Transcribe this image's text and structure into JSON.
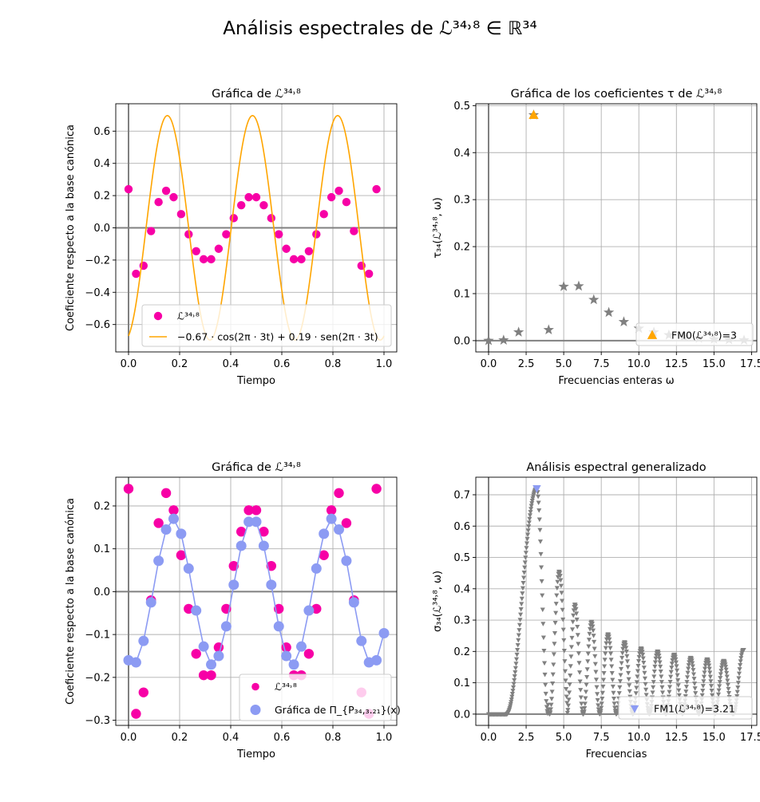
{
  "figure": {
    "suptitle": "Análisis espectrales de ℒ³⁴˒⁸ ∈ ℝ³⁴"
  },
  "colors": {
    "magenta": "#f700a6",
    "orange": "#ffa500",
    "gray": "#808080",
    "blue": "#8c9bf3",
    "grid": "#b0b0b0",
    "axis": "#808080"
  },
  "chart_data": [
    {
      "id": "p1",
      "type": "scatter",
      "title": "Gráfica de ℒ³⁴˒⁸",
      "xlabel": "Tiempo",
      "ylabel": "Coeficiente respecto a la base canónica",
      "xlim": [
        -0.05,
        1.05
      ],
      "ylim": [
        -0.77,
        0.77
      ],
      "xticks": [
        0.0,
        0.2,
        0.4,
        0.6,
        0.8,
        1.0
      ],
      "xtick_labels": [
        "0.0",
        "0.2",
        "0.4",
        "0.6",
        "0.8",
        "1.0"
      ],
      "yticks": [
        -0.6,
        -0.4,
        -0.2,
        0.0,
        0.2,
        0.4,
        0.6
      ],
      "ytick_labels": [
        "−0.6",
        "−0.4",
        "−0.2",
        "0.0",
        "0.2",
        "0.4",
        "0.6"
      ],
      "grid": true,
      "legend_position": "lower-right",
      "series": [
        {
          "name": "ℒ³⁴˒⁸",
          "kind": "points",
          "color": "#f700a6",
          "x": [
            0.0,
            0.0294,
            0.0588,
            0.0882,
            0.1176,
            0.1471,
            0.1765,
            0.2059,
            0.2353,
            0.2647,
            0.2941,
            0.3235,
            0.3529,
            0.3824,
            0.4118,
            0.4412,
            0.4706,
            0.5,
            0.5294,
            0.5588,
            0.5882,
            0.6176,
            0.6471,
            0.6765,
            0.7059,
            0.7353,
            0.7647,
            0.7941,
            0.8235,
            0.8529,
            0.8824,
            0.9118,
            0.9412,
            0.9706
          ],
          "y": [
            0.24,
            -0.285,
            -0.235,
            -0.02,
            0.16,
            0.23,
            0.19,
            0.085,
            -0.04,
            -0.145,
            -0.195,
            -0.195,
            -0.13,
            -0.04,
            0.06,
            0.14,
            0.19,
            0.19,
            0.14,
            0.06,
            -0.04,
            -0.13,
            -0.195,
            -0.195,
            -0.145,
            -0.04,
            0.085,
            0.19,
            0.23,
            0.16,
            -0.02,
            -0.235,
            -0.285,
            0.24
          ]
        },
        {
          "name": "−0.67 · cos(2π · 3t) + 0.19 · sen(2π · 3t)",
          "kind": "curve",
          "color": "#ffa500",
          "a": -0.67,
          "b": 0.19,
          "freq": 3,
          "t_range": [
            0.0,
            1.0
          ]
        }
      ]
    },
    {
      "id": "p2",
      "type": "scatter",
      "title": "Gráfica de los coeficientes τ de ℒ³⁴˒⁸",
      "xlabel": "Frecuencias enteras ω",
      "ylabel": "τ₃₄(ℒ³⁴˒⁸, ω)",
      "xlim": [
        -0.85,
        17.85
      ],
      "ylim": [
        -0.024,
        0.504
      ],
      "xticks": [
        0.0,
        2.5,
        5.0,
        7.5,
        10.0,
        12.5,
        15.0,
        17.5
      ],
      "xtick_labels": [
        "0.0",
        "2.5",
        "5.0",
        "7.5",
        "10.0",
        "12.5",
        "15.0",
        "17.5"
      ],
      "yticks": [
        0.0,
        0.1,
        0.2,
        0.3,
        0.4,
        0.5
      ],
      "ytick_labels": [
        "0.0",
        "0.1",
        "0.2",
        "0.3",
        "0.4",
        "0.5"
      ],
      "grid": true,
      "legend_position": "lower-right",
      "series": [
        {
          "name": "",
          "kind": "stars",
          "color": "#808080",
          "x": [
            0,
            1,
            2,
            3,
            4,
            5,
            6,
            7,
            8,
            9,
            10,
            11,
            12,
            13,
            14,
            15,
            16,
            17
          ],
          "y": [
            0.0,
            0.001,
            0.018,
            0.48,
            0.023,
            0.115,
            0.116,
            0.087,
            0.06,
            0.04,
            0.026,
            0.018,
            0.012,
            0.008,
            0.005,
            0.003,
            0.002,
            0.001
          ]
        },
        {
          "name": "FM0(ℒ³⁴˒⁸)=3",
          "kind": "triangle-up",
          "color": "#ffa500",
          "x": [
            3
          ],
          "y": [
            0.48
          ]
        }
      ]
    },
    {
      "id": "p3",
      "type": "scatter",
      "title": "Gráfica de ℒ³⁴˒⁸",
      "xlabel": "Tiempo",
      "ylabel": "Coeficiente respecto a la base canónica",
      "xlim": [
        -0.05,
        1.05
      ],
      "ylim": [
        -0.312,
        0.267
      ],
      "xticks": [
        0.0,
        0.2,
        0.4,
        0.6,
        0.8,
        1.0
      ],
      "xtick_labels": [
        "0.0",
        "0.2",
        "0.4",
        "0.6",
        "0.8",
        "1.0"
      ],
      "yticks": [
        -0.3,
        -0.2,
        -0.1,
        0.0,
        0.1,
        0.2
      ],
      "ytick_labels": [
        "−0.3",
        "−0.2",
        "−0.1",
        "0.0",
        "0.1",
        "0.2"
      ],
      "grid": true,
      "legend_position": "lower-right",
      "series": [
        {
          "name": "ℒ³⁴˒⁸",
          "kind": "points",
          "color": "#f700a6",
          "x": [
            0.0,
            0.0294,
            0.0588,
            0.0882,
            0.1176,
            0.1471,
            0.1765,
            0.2059,
            0.2353,
            0.2647,
            0.2941,
            0.3235,
            0.3529,
            0.3824,
            0.4118,
            0.4412,
            0.4706,
            0.5,
            0.5294,
            0.5588,
            0.5882,
            0.6176,
            0.6471,
            0.6765,
            0.7059,
            0.7353,
            0.7647,
            0.7941,
            0.8235,
            0.8529,
            0.8824,
            0.9118,
            0.9412,
            0.9706
          ],
          "y": [
            0.24,
            -0.285,
            -0.235,
            -0.02,
            0.16,
            0.23,
            0.19,
            0.085,
            -0.04,
            -0.145,
            -0.195,
            -0.195,
            -0.13,
            -0.04,
            0.06,
            0.14,
            0.19,
            0.19,
            0.14,
            0.06,
            -0.04,
            -0.13,
            -0.195,
            -0.195,
            -0.145,
            -0.04,
            0.085,
            0.19,
            0.23,
            0.16,
            -0.02,
            -0.235,
            -0.285,
            0.24
          ]
        },
        {
          "name": "Gráfica de Π_{P₃₄,₃.₂₁}(x)",
          "kind": "points-line",
          "color": "#8c9bf3",
          "x": [
            0.0,
            0.0294,
            0.0588,
            0.0882,
            0.1176,
            0.1471,
            0.1765,
            0.2059,
            0.2353,
            0.2647,
            0.2941,
            0.3235,
            0.3529,
            0.3824,
            0.4118,
            0.4412,
            0.4706,
            0.5,
            0.5294,
            0.5588,
            0.5882,
            0.6176,
            0.6471,
            0.6765,
            0.7059,
            0.7353,
            0.7647,
            0.7941,
            0.8235,
            0.8529,
            0.8824,
            0.9118,
            0.9412,
            0.9706,
            1.0
          ],
          "y": [
            -0.16,
            -0.165,
            -0.115,
            -0.025,
            0.072,
            0.145,
            0.17,
            0.135,
            0.054,
            -0.044,
            -0.128,
            -0.17,
            -0.15,
            -0.081,
            0.016,
            0.107,
            0.163,
            0.163,
            0.107,
            0.016,
            -0.081,
            -0.15,
            -0.17,
            -0.128,
            -0.044,
            0.054,
            0.135,
            0.17,
            0.145,
            0.072,
            -0.025,
            -0.115,
            -0.165,
            -0.16,
            -0.097
          ]
        }
      ]
    },
    {
      "id": "p4",
      "type": "line",
      "title": "Análisis espectral generalizado",
      "xlabel": "Frecuencias",
      "ylabel": "σ₃₄(ℒ³⁴˒⁸, ω)",
      "xlim": [
        -0.85,
        17.85
      ],
      "ylim": [
        -0.036,
        0.756
      ],
      "xticks": [
        0.0,
        2.5,
        5.0,
        7.5,
        10.0,
        12.5,
        15.0,
        17.5
      ],
      "xtick_labels": [
        "0.0",
        "2.5",
        "5.0",
        "7.5",
        "10.0",
        "12.5",
        "15.0",
        "17.5"
      ],
      "yticks": [
        0.0,
        0.1,
        0.2,
        0.3,
        0.4,
        0.5,
        0.6,
        0.7
      ],
      "ytick_labels": [
        "0.0",
        "0.1",
        "0.2",
        "0.3",
        "0.4",
        "0.5",
        "0.6",
        "0.7"
      ],
      "grid": true,
      "legend_position": "lower-right",
      "series": [
        {
          "name": "",
          "kind": "dense-markers",
          "color": "#808080",
          "x_range": [
            0.0,
            17.0
          ],
          "peaks": [
            {
              "center": 3.21,
              "peak": 0.72
            },
            {
              "center": 4.7,
              "peak": 0.455
            },
            {
              "center": 5.75,
              "peak": 0.35
            },
            {
              "center": 6.85,
              "peak": 0.295
            },
            {
              "center": 7.95,
              "peak": 0.255
            },
            {
              "center": 9.05,
              "peak": 0.23
            },
            {
              "center": 10.15,
              "peak": 0.21
            },
            {
              "center": 11.25,
              "peak": 0.2
            },
            {
              "center": 12.35,
              "peak": 0.19
            },
            {
              "center": 13.45,
              "peak": 0.18
            },
            {
              "center": 14.55,
              "peak": 0.175
            },
            {
              "center": 15.65,
              "peak": 0.17
            },
            {
              "center": 16.95,
              "peak": 0.205
            }
          ]
        },
        {
          "name": "FM1(ℒ³⁴˒⁸)=3.21",
          "kind": "triangle-down",
          "color": "#8c9bf3",
          "x": [
            3.21
          ],
          "y": [
            0.72
          ]
        }
      ]
    }
  ]
}
